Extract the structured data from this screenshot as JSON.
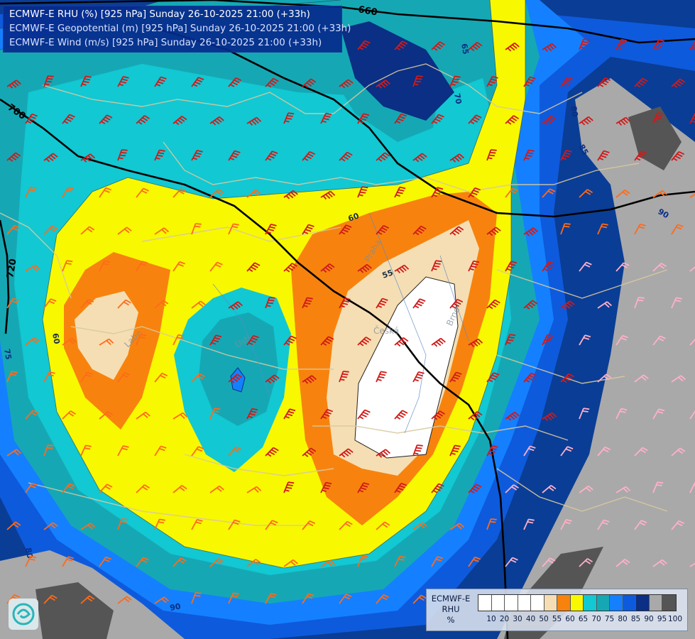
{
  "title": {
    "line1": "ECMWF-E RHU (%) [925 hPa] Sunday 26-10-2025 21:00 (+33h)",
    "line2": "ECMWF-E Geopotential (m) [925 hPa] Sunday 26-10-2025 21:00 (+33h)",
    "line3": "ECMWF-E Wind (m/s) [925 hPa] Sunday 26-10-2025 21:00 (+33h)"
  },
  "legend": {
    "title": [
      "ECMWF-E",
      "RHU",
      "%"
    ],
    "bins": [
      {
        "color": "#ffffff"
      },
      {
        "color": "#ffffff"
      },
      {
        "color": "#ffffff"
      },
      {
        "color": "#ffffff"
      },
      {
        "color": "#ffffff"
      },
      {
        "color": "#f5deb3"
      },
      {
        "color": "#f7830e"
      },
      {
        "color": "#f8f800"
      },
      {
        "color": "#12c8d2"
      },
      {
        "color": "#15a8b4"
      },
      {
        "color": "#1480ff"
      },
      {
        "color": "#0e5adc"
      },
      {
        "color": "#0a2f84"
      },
      {
        "color": "#a9a9a9"
      },
      {
        "color": "#555555"
      }
    ],
    "ticks": [
      "10",
      "20",
      "30",
      "40",
      "50",
      "55",
      "60",
      "65",
      "70",
      "75",
      "80",
      "85",
      "90",
      "95",
      "100"
    ]
  },
  "contour_labels": {
    "rhu": [
      "90",
      "65",
      "70",
      "80",
      "85",
      "90",
      "60",
      "55",
      "60",
      "75",
      "80",
      "90"
    ],
    "geopotential": [
      "660",
      "700",
      "720"
    ]
  },
  "map_labels": [
    "Praha",
    "Česká",
    "Ústí",
    "Brno",
    "Labe"
  ],
  "colors": {
    "title_bg": "#062a8c",
    "geopotential_line": "#000000",
    "border_line": "#d8c9a0",
    "wind_barb_strong": "#d01a1a",
    "wind_barb_mid": "#ff6a1a",
    "wind_barb_weak": "#ffb0c8"
  },
  "icons": {
    "logo": "ecmwf-swirl-icon"
  }
}
